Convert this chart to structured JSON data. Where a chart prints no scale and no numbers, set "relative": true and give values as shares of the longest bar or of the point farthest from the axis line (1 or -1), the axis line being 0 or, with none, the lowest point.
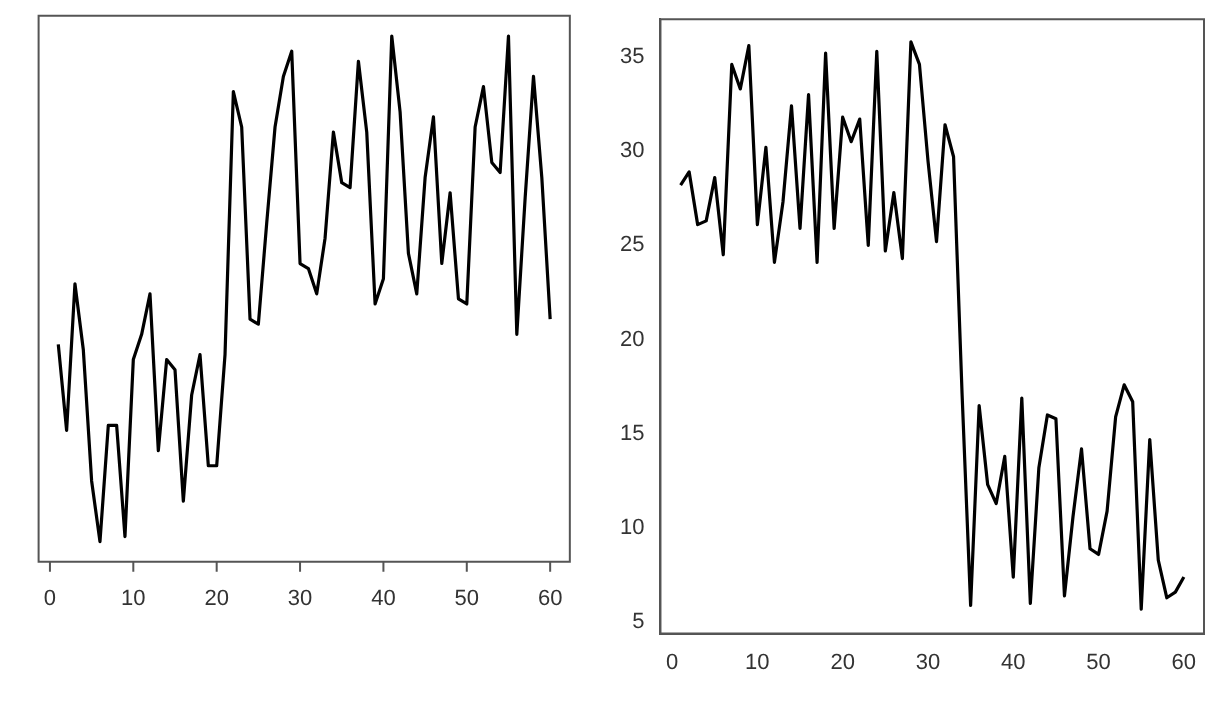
{
  "chart_data": [
    {
      "type": "line",
      "relative": true,
      "x": [
        1,
        2,
        3,
        4,
        5,
        6,
        7,
        8,
        9,
        10,
        11,
        12,
        13,
        14,
        15,
        16,
        17,
        18,
        19,
        20,
        21,
        22,
        23,
        24,
        25,
        26,
        27,
        28,
        29,
        30,
        31,
        32,
        33,
        34,
        35,
        36,
        37,
        38,
        39,
        40,
        41,
        42,
        43,
        44,
        45,
        46,
        47,
        48,
        49,
        50,
        51,
        52,
        53,
        54,
        55,
        56,
        57,
        58,
        59,
        60
      ],
      "series": [
        {
          "color": "#000000",
          "values": [
            0.39,
            0.22,
            0.51,
            0.38,
            0.12,
            0,
            0.23,
            0.23,
            0.01,
            0.36,
            0.41,
            0.49,
            0.18,
            0.36,
            0.34,
            0.08,
            0.29,
            0.37,
            0.15,
            0.15,
            0.37,
            0.89,
            0.82,
            0.44,
            0.43,
            0.63,
            0.82,
            0.92,
            0.97,
            0.55,
            0.54,
            0.49,
            0.6,
            0.81,
            0.71,
            0.7,
            0.95,
            0.81,
            0.47,
            0.52,
            1,
            0.85,
            0.57,
            0.49,
            0.72,
            0.84,
            0.55,
            0.69,
            0.48,
            0.47,
            0.82,
            0.9,
            0.75,
            0.73,
            1,
            0.41,
            0.68,
            0.92,
            0.72,
            0.44
          ]
        }
      ],
      "xlim": [
        -1.36,
        62.36
      ],
      "xticks": [
        0,
        10,
        20,
        30,
        40,
        50,
        60
      ]
    },
    {
      "type": "line",
      "x": [
        1,
        2,
        3,
        4,
        5,
        6,
        7,
        8,
        9,
        10,
        11,
        12,
        13,
        14,
        15,
        16,
        17,
        18,
        19,
        20,
        21,
        22,
        23,
        24,
        25,
        26,
        27,
        28,
        29,
        30,
        31,
        32,
        33,
        34,
        35,
        36,
        37,
        38,
        39,
        40,
        41,
        42,
        43,
        44,
        45,
        46,
        47,
        48,
        49,
        50,
        51,
        52,
        53,
        54,
        55,
        56,
        57,
        58,
        59,
        60
      ],
      "series": [
        {
          "color": "#000000",
          "values": [
            28.2,
            28.9,
            26.1,
            26.3,
            28.6,
            24.5,
            34.6,
            33.3,
            35.6,
            26.1,
            30.2,
            24.1,
            27.3,
            32.4,
            25.9,
            33.0,
            24.1,
            35.2,
            25.9,
            31.8,
            30.5,
            31.7,
            25.0,
            35.3,
            24.7,
            27.8,
            24.3,
            35.8,
            34.6,
            29.5,
            25.2,
            31.4,
            29.7,
            17.1,
            5.9,
            16.5,
            12.3,
            11.3,
            13.8,
            7.4,
            16.9,
            6.0,
            13.2,
            16.0,
            15.8,
            6.4,
            10.6,
            14.2,
            8.9,
            8.6,
            10.9,
            15.9,
            17.6,
            16.7,
            5.7,
            14.7,
            8.3,
            6.3,
            6.6,
            7.4
          ]
        }
      ],
      "xlim": [
        -1.36,
        62.36
      ],
      "xticks": [
        0,
        10,
        20,
        30,
        40,
        50,
        60
      ],
      "ylim": [
        4.4,
        37
      ],
      "yticks": [
        5,
        10,
        15,
        20,
        25,
        30,
        35
      ]
    }
  ]
}
